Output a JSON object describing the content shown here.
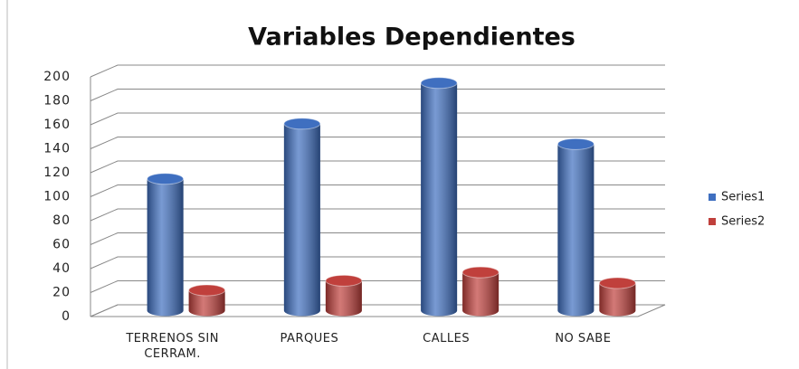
{
  "chart_data": {
    "type": "bar",
    "title": "Variables Dependientes",
    "categories": [
      "TERRENOS SIN CERRAM.",
      "PARQUES",
      "CALLES",
      "NO SABE"
    ],
    "series": [
      {
        "name": "Series1",
        "color": "#3f6fc0",
        "values": [
          110,
          156,
          190,
          139
        ]
      },
      {
        "name": "Series2",
        "color": "#c0403c",
        "values": [
          17,
          25,
          32,
          23
        ]
      }
    ],
    "ylim": [
      0,
      200
    ],
    "yticks": [
      0,
      20,
      40,
      60,
      80,
      100,
      120,
      140,
      160,
      180,
      200
    ],
    "grid": true,
    "legend": "right"
  }
}
